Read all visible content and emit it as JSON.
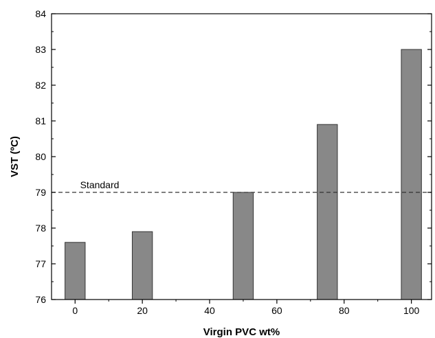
{
  "chart_data": {
    "type": "bar",
    "x": [
      0,
      20,
      50,
      75,
      100
    ],
    "values": [
      77.6,
      77.9,
      79.0,
      80.9,
      83.0
    ],
    "xlabel": "Virgin PVC wt%",
    "ylabel": "VST (ºC)",
    "xlim": [
      -7,
      106
    ],
    "ylim": [
      76,
      84
    ],
    "xticks": [
      0,
      20,
      40,
      60,
      80,
      100
    ],
    "yticks": [
      76,
      77,
      78,
      79,
      80,
      81,
      82,
      83,
      84
    ],
    "bar_width": 6,
    "bar_color": "#888888",
    "reference_line": {
      "value": 79,
      "label": "Standard",
      "style": "dashed"
    },
    "grid": false,
    "legend": "none"
  }
}
